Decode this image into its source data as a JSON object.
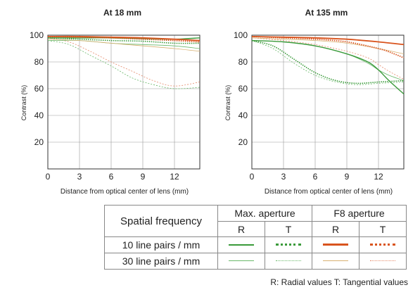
{
  "colors": {
    "max_aperture": "#3a9a3a",
    "max_aperture_30": "#6ab86a",
    "f8_10": "#d9541e",
    "f8_30": "#d8b070",
    "f8_30_tangential": "#e58a6a"
  },
  "axes": {
    "y_label": "Contrast (%)",
    "x_label": "Distance from optical center of lens (mm)",
    "y_ticks": [
      "100",
      "80",
      "60",
      "40",
      "20"
    ],
    "x_ticks": [
      "0",
      "3",
      "6",
      "9",
      "12"
    ]
  },
  "chart_data": [
    {
      "type": "line",
      "title": "At 18 mm",
      "xlabel": "Distance from optical center of lens (mm)",
      "ylabel": "Contrast (%)",
      "xlim": [
        0,
        14.4
      ],
      "ylim": [
        0,
        100
      ],
      "grid": true,
      "series": [
        {
          "key": "max_10_R",
          "x": [
            0,
            3,
            6,
            9,
            12,
            14.4
          ],
          "values": [
            98,
            98,
            98,
            97.5,
            97,
            98
          ]
        },
        {
          "key": "max_10_T",
          "x": [
            0,
            3,
            6,
            9,
            12,
            14.4
          ],
          "values": [
            98,
            97,
            96,
            95.5,
            94,
            94
          ]
        },
        {
          "key": "f8_10_R",
          "x": [
            0,
            3,
            6,
            9,
            12,
            14.4
          ],
          "values": [
            99,
            99,
            98.5,
            98,
            97,
            96
          ]
        },
        {
          "key": "f8_10_T",
          "x": [
            0,
            3,
            6,
            9,
            12,
            14.4
          ],
          "values": [
            99,
            98.5,
            98,
            97,
            96,
            95
          ]
        },
        {
          "key": "max_30_R",
          "x": [
            0,
            3,
            6,
            9,
            12,
            14.4
          ],
          "values": [
            96,
            96,
            94,
            93,
            92,
            90
          ]
        },
        {
          "key": "max_30_T",
          "x": [
            0,
            2,
            4,
            6,
            8,
            10,
            12,
            14.4
          ],
          "values": [
            96,
            93,
            85,
            77,
            68,
            63,
            60,
            61
          ]
        },
        {
          "key": "f8_30_R",
          "x": [
            0,
            3,
            6,
            9,
            12,
            14.4
          ],
          "values": [
            97,
            96,
            94,
            92,
            90,
            88
          ]
        },
        {
          "key": "f8_30_T",
          "x": [
            0,
            2,
            4,
            6,
            8,
            10,
            12,
            14.4
          ],
          "values": [
            98,
            95,
            88,
            80,
            73,
            66,
            62,
            65
          ]
        }
      ]
    },
    {
      "type": "line",
      "title": "At 135 mm",
      "xlabel": "Distance from optical center of lens (mm)",
      "ylabel": "Contrast (%)",
      "xlim": [
        0,
        14.4
      ],
      "ylim": [
        0,
        100
      ],
      "grid": true,
      "series": [
        {
          "key": "max_10_R",
          "x": [
            0,
            3,
            6,
            9,
            11,
            12,
            13,
            14.4
          ],
          "values": [
            96,
            95,
            92,
            86,
            80,
            74,
            66,
            56
          ]
        },
        {
          "key": "max_10_T",
          "x": [
            0,
            2,
            4,
            6,
            8,
            10,
            12,
            14.4
          ],
          "values": [
            96,
            92,
            82,
            72,
            66,
            64,
            65,
            66
          ]
        },
        {
          "key": "f8_10_R",
          "x": [
            0,
            3,
            6,
            9,
            12,
            14.4
          ],
          "values": [
            99,
            98.5,
            98,
            97,
            95,
            93
          ]
        },
        {
          "key": "f8_10_T",
          "x": [
            0,
            3,
            6,
            9,
            12,
            13.5,
            14.4
          ],
          "values": [
            99,
            98,
            97,
            95,
            90,
            86,
            83
          ]
        },
        {
          "key": "max_30_R",
          "x": [
            0,
            3,
            6,
            9,
            11,
            12,
            13,
            14.4
          ],
          "values": [
            96,
            95,
            92,
            86,
            79,
            74,
            70,
            66
          ]
        },
        {
          "key": "max_30_T",
          "x": [
            0,
            2,
            4,
            6,
            8,
            10,
            12,
            14.4
          ],
          "values": [
            96,
            90,
            79,
            70,
            65,
            63,
            64,
            65
          ]
        },
        {
          "key": "f8_30_R",
          "x": [
            0,
            3,
            6,
            9,
            12,
            14.4
          ],
          "values": [
            98,
            97,
            96,
            94,
            90,
            86
          ]
        },
        {
          "key": "f8_30_T",
          "x": [
            0,
            3,
            6,
            9,
            11,
            12,
            13,
            14.4
          ],
          "values": [
            98,
            96,
            93,
            88,
            83,
            78,
            73,
            67
          ]
        }
      ]
    }
  ],
  "legend": {
    "header": "Spatial frequency",
    "groups": [
      "Max. aperture",
      "F8 aperture"
    ],
    "subheads": [
      "R",
      "T",
      "R",
      "T"
    ],
    "rows": [
      {
        "label": "10 line pairs / mm"
      },
      {
        "label": "30 line pairs / mm"
      }
    ]
  },
  "footnote": "R: Radial values  T: Tangential values"
}
